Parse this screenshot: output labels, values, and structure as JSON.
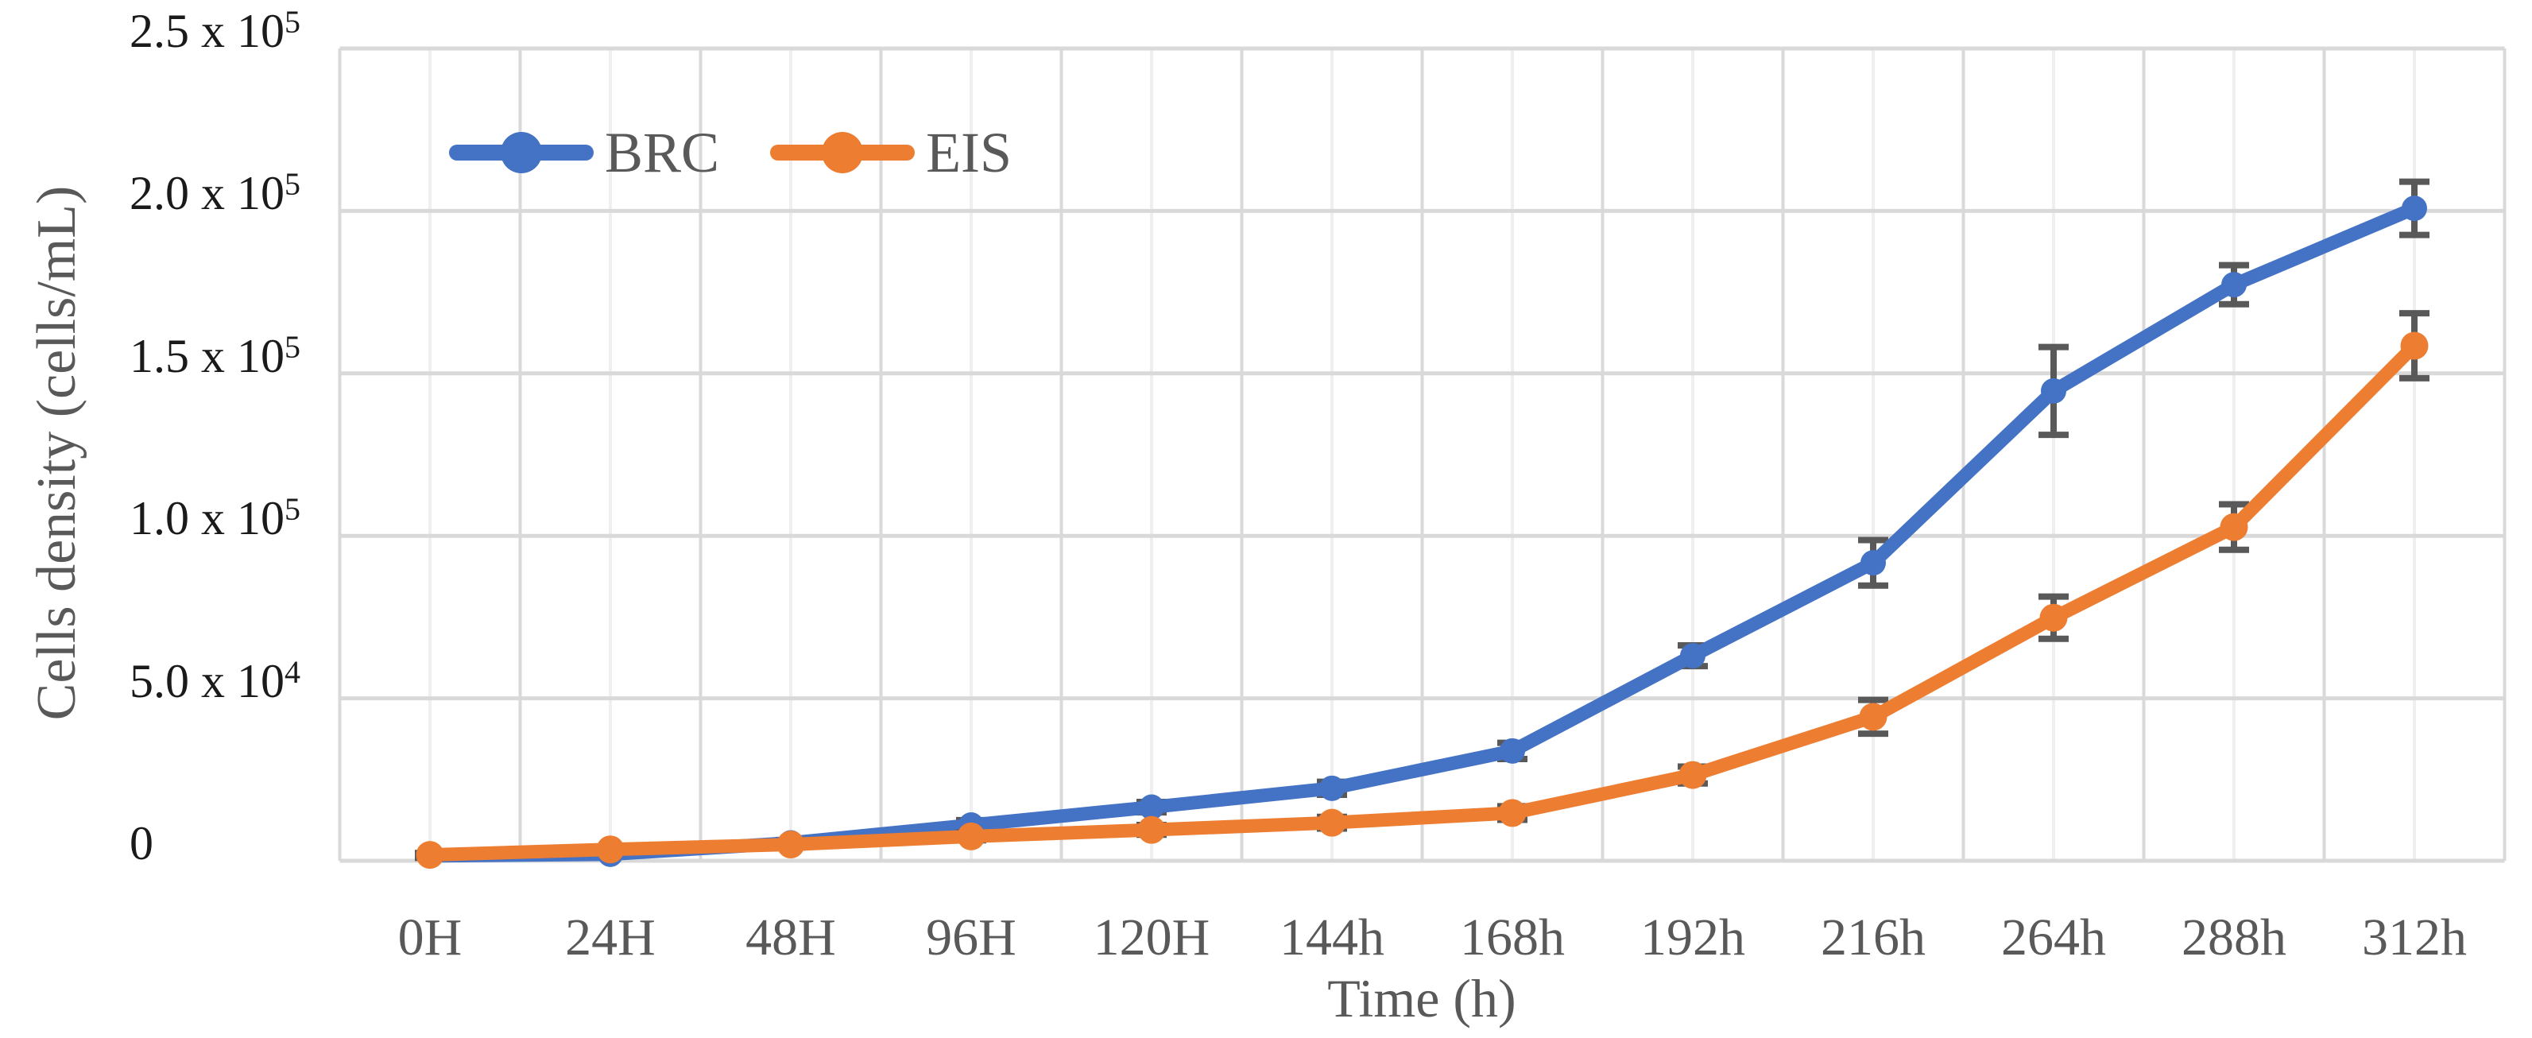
{
  "chart_data": {
    "type": "line",
    "title": "",
    "xlabel": "Time (h)",
    "ylabel": "Cells density (cells/mL)",
    "categories": [
      "0H",
      "24H",
      "48H",
      "96H",
      "120H",
      "144h",
      "168h",
      "192h",
      "216h",
      "264h",
      "288h",
      "312h"
    ],
    "ylim": [
      0,
      250000
    ],
    "grid": {
      "major_color": "#D9D9D9",
      "minor_color": "#EFEFEF",
      "grid_on": true
    },
    "legend_position": "top-left-inside",
    "error_bar_color": "#595959",
    "y_ticks": [
      {
        "base": "0",
        "sup": "",
        "value": 0
      },
      {
        "base": "5.0 x 10",
        "sup": "4",
        "value": 50000
      },
      {
        "base": "1.0 x 10",
        "sup": "5",
        "value": 100000
      },
      {
        "base": "1.5 x 10",
        "sup": "5",
        "value": 150000
      },
      {
        "base": "2.0 x 10",
        "sup": "5",
        "value": 200000
      },
      {
        "base": "2.5 x 10",
        "sup": "5",
        "value": 250000
      }
    ],
    "series": [
      {
        "name": "BRC",
        "color": "#4472C4",
        "values": [
          1500,
          2000,
          5500,
          11000,
          16500,
          22300,
          33800,
          63100,
          91700,
          144600,
          177300,
          200800
        ],
        "errors": [
          600,
          600,
          900,
          1500,
          1600,
          2000,
          2500,
          3200,
          7000,
          13500,
          6000,
          8200
        ]
      },
      {
        "name": "EIS",
        "color": "#ED7D31",
        "values": [
          1800,
          3500,
          5000,
          7500,
          9500,
          11700,
          14700,
          26400,
          44300,
          74800,
          102700,
          158500
        ],
        "errors": [
          600,
          800,
          900,
          1200,
          1500,
          1800,
          2100,
          2600,
          5200,
          6500,
          7000,
          10000
        ]
      }
    ]
  }
}
